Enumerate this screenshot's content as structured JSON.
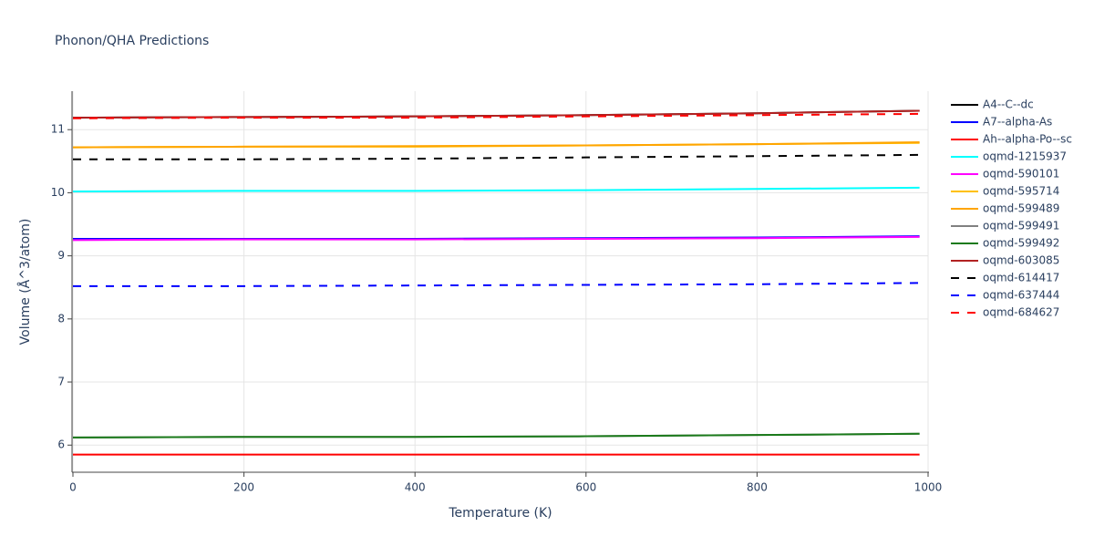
{
  "chart_data": {
    "type": "line",
    "title": "Phonon/QHA Predictions",
    "x_label": "Temperature (K)",
    "y_label": "Volume (Å^3/atom)",
    "x": [
      0,
      200,
      400,
      600,
      800,
      990
    ],
    "xlim": [
      0,
      1000
    ],
    "xticks": [
      0,
      200,
      400,
      600,
      800,
      1000
    ],
    "ylim": [
      5.57,
      11.61
    ],
    "yticks": [
      6,
      7,
      8,
      9,
      10,
      11
    ],
    "grid": true,
    "legend": "right",
    "series": [
      {
        "name": "A4--C--dc",
        "color": "#000000",
        "dash": "solid",
        "values": [
          11.19,
          11.2,
          11.21,
          11.23,
          11.26,
          11.3
        ]
      },
      {
        "name": "A7--alpha-As",
        "color": "#0000ff",
        "dash": "solid",
        "values": [
          9.27,
          9.27,
          9.27,
          9.28,
          9.29,
          9.31
        ]
      },
      {
        "name": "Ah--alpha-Po--sc",
        "color": "#ff0000",
        "dash": "solid",
        "values": [
          5.85,
          5.85,
          5.85,
          5.85,
          5.85,
          5.85
        ]
      },
      {
        "name": "oqmd-1215937",
        "color": "#00ffff",
        "dash": "solid",
        "values": [
          10.02,
          10.03,
          10.03,
          10.04,
          10.06,
          10.08
        ]
      },
      {
        "name": "oqmd-590101",
        "color": "#ff00ff",
        "dash": "solid",
        "values": [
          9.25,
          9.26,
          9.26,
          9.27,
          9.28,
          9.3
        ]
      },
      {
        "name": "oqmd-595714",
        "color": "#ffc000",
        "dash": "solid",
        "values": [
          10.72,
          10.73,
          10.73,
          10.75,
          10.77,
          10.79
        ]
      },
      {
        "name": "oqmd-599489",
        "color": "#ffa500",
        "dash": "solid",
        "values": [
          10.72,
          10.73,
          10.74,
          10.75,
          10.77,
          10.8
        ]
      },
      {
        "name": "oqmd-599491",
        "color": "#808080",
        "dash": "solid",
        "values": [
          6.12,
          6.13,
          6.13,
          6.14,
          6.16,
          6.18
        ]
      },
      {
        "name": "oqmd-599492",
        "color": "#1a7a1a",
        "dash": "solid",
        "values": [
          6.12,
          6.13,
          6.13,
          6.14,
          6.16,
          6.18
        ]
      },
      {
        "name": "oqmd-603085",
        "color": "#b22222",
        "dash": "solid",
        "values": [
          11.19,
          11.2,
          11.21,
          11.23,
          11.26,
          11.3
        ]
      },
      {
        "name": "oqmd-614417",
        "color": "#000000",
        "dash": "dash",
        "values": [
          10.53,
          10.53,
          10.54,
          10.56,
          10.58,
          10.6
        ]
      },
      {
        "name": "oqmd-637444",
        "color": "#0000ff",
        "dash": "dash",
        "values": [
          8.52,
          8.52,
          8.53,
          8.54,
          8.55,
          8.57
        ]
      },
      {
        "name": "oqmd-684627",
        "color": "#ff0000",
        "dash": "dash",
        "values": [
          11.18,
          11.19,
          11.19,
          11.21,
          11.23,
          11.25
        ]
      }
    ]
  }
}
